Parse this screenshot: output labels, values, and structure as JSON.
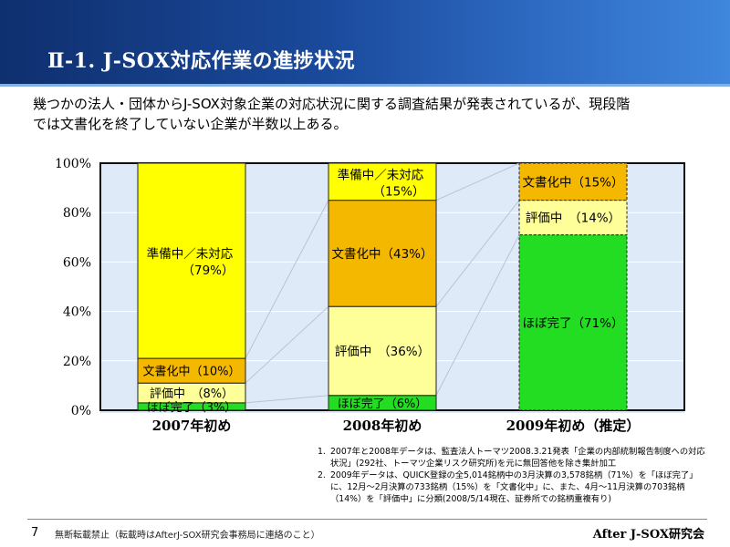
{
  "header": {
    "title": "Ⅱ-1. J-SOX対応作業の進捗状況"
  },
  "intro": [
    "幾つかの法人・団体からJ-SOX対象企業の対応状況に関する調査結果が発表されているが、現段階",
    "では文書化を終了していない企業が半数以上ある。"
  ],
  "chart_data": {
    "type": "bar",
    "stacked": true,
    "percent": true,
    "categories": [
      "2007年初め",
      "2008年初め",
      "2009年初め（推定）"
    ],
    "ylim": [
      0,
      100
    ],
    "yticks": [
      "0%",
      "20%",
      "40%",
      "60%",
      "80%",
      "100%"
    ],
    "series": [
      {
        "name": "ほぼ完了",
        "values": [
          3,
          6,
          71
        ],
        "color": "#22dd22",
        "labels": [
          "ほぼ完了（3%）",
          "ほぼ完了（6%）",
          "ほぼ完了（71%）"
        ]
      },
      {
        "name": "評価中",
        "values": [
          8,
          36,
          14
        ],
        "color": "#ffff99",
        "labels": [
          "評価中　（8%）",
          "評価中　（36%）",
          "評価中　（14%）"
        ]
      },
      {
        "name": "文書化中",
        "values": [
          10,
          43,
          15
        ],
        "color": "#f5b800",
        "labels": [
          "文書化中（10%）",
          "文書化中（43%）",
          "文書化中（15%）"
        ]
      },
      {
        "name": "準備中／未対応",
        "values": [
          79,
          15,
          0
        ],
        "color": "#ffff00",
        "labels": [
          "準備中／未対応|（79%）",
          "準備中／未対応|（15%）",
          ""
        ]
      }
    ]
  },
  "notes": [
    {
      "num": "1.",
      "text": "2007年と2008年データは、監査法人トーマツ2008.3.21発表「企業の内部統制報告制度への対応状況」(292社、トーマツ企業リスク研究所)を元に無回答他を除き集計加工"
    },
    {
      "num": "2.",
      "text": "2009年データは、QUICK登録の全5,014銘柄中の3月決算の3,578銘柄（71%）を「ほぼ完了」に、12月～2月決算の733銘柄（15%）を「文書化中」に、また、4月～11月決算の703銘柄（14%）を「評価中」に分類(2008/5/14現在、証券所での銘柄重複有り)"
    }
  ],
  "footer": {
    "page": "7",
    "notice": "無断転載禁止（転載時はAfterJ-SOX研究会事務局に連絡のこと）",
    "brand": "After J-SOX研究会"
  }
}
